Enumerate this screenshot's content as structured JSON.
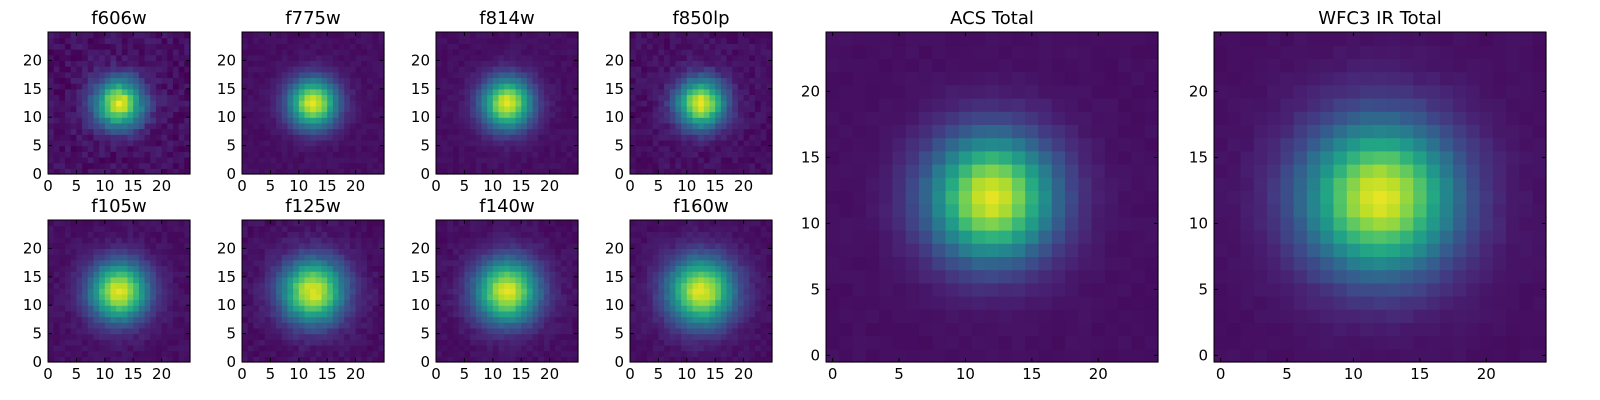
{
  "chart_data": [
    {
      "type": "heatmap",
      "title": "f606w",
      "xticks": [
        0,
        5,
        10,
        15,
        20
      ],
      "yticks": [
        0,
        5,
        10,
        15,
        20
      ],
      "xlim": [
        0,
        25
      ],
      "ylim": [
        0,
        25
      ],
      "grid_size": 25,
      "center": [
        12,
        12
      ],
      "sigma": 3.0,
      "noise": 0.1,
      "colormap": "viridis"
    },
    {
      "type": "heatmap",
      "title": "f775w",
      "xticks": [
        0,
        5,
        10,
        15,
        20
      ],
      "yticks": [
        0,
        5,
        10,
        15,
        20
      ],
      "xlim": [
        0,
        25
      ],
      "ylim": [
        0,
        25
      ],
      "grid_size": 25,
      "center": [
        12,
        12
      ],
      "sigma": 3.0,
      "noise": 0.04,
      "colormap": "viridis"
    },
    {
      "type": "heatmap",
      "title": "f814w",
      "xticks": [
        0,
        5,
        10,
        15,
        20
      ],
      "yticks": [
        0,
        5,
        10,
        15,
        20
      ],
      "xlim": [
        0,
        25
      ],
      "ylim": [
        0,
        25
      ],
      "grid_size": 25,
      "center": [
        12,
        12
      ],
      "sigma": 3.1,
      "noise": 0.04,
      "colormap": "viridis"
    },
    {
      "type": "heatmap",
      "title": "f850lp",
      "xticks": [
        0,
        5,
        10,
        15,
        20
      ],
      "yticks": [
        0,
        5,
        10,
        15,
        20
      ],
      "xlim": [
        0,
        25
      ],
      "ylim": [
        0,
        25
      ],
      "grid_size": 25,
      "center": [
        12,
        12
      ],
      "sigma": 3.0,
      "noise": 0.07,
      "colormap": "viridis"
    },
    {
      "type": "heatmap",
      "title": "f105w",
      "xticks": [
        0,
        5,
        10,
        15,
        20
      ],
      "yticks": [
        0,
        5,
        10,
        15,
        20
      ],
      "xlim": [
        0,
        25
      ],
      "ylim": [
        0,
        25
      ],
      "grid_size": 25,
      "center": [
        12,
        12
      ],
      "sigma": 3.6,
      "noise": 0.05,
      "colormap": "viridis"
    },
    {
      "type": "heatmap",
      "title": "f125w",
      "xticks": [
        0,
        5,
        10,
        15,
        20
      ],
      "yticks": [
        0,
        5,
        10,
        15,
        20
      ],
      "xlim": [
        0,
        25
      ],
      "ylim": [
        0,
        25
      ],
      "grid_size": 25,
      "center": [
        12,
        12
      ],
      "sigma": 3.9,
      "noise": 0.06,
      "colormap": "viridis"
    },
    {
      "type": "heatmap",
      "title": "f140w",
      "xticks": [
        0,
        5,
        10,
        15,
        20
      ],
      "yticks": [
        0,
        5,
        10,
        15,
        20
      ],
      "xlim": [
        0,
        25
      ],
      "ylim": [
        0,
        25
      ],
      "grid_size": 25,
      "center": [
        12,
        12
      ],
      "sigma": 3.9,
      "noise": 0.05,
      "colormap": "viridis"
    },
    {
      "type": "heatmap",
      "title": "f160w",
      "xticks": [
        0,
        5,
        10,
        15,
        20
      ],
      "yticks": [
        0,
        5,
        10,
        15,
        20
      ],
      "xlim": [
        0,
        25
      ],
      "ylim": [
        0,
        25
      ],
      "grid_size": 25,
      "center": [
        12,
        12
      ],
      "sigma": 4.1,
      "noise": 0.05,
      "colormap": "viridis"
    },
    {
      "type": "heatmap",
      "title": "ACS Total",
      "xticks": [
        0,
        5,
        10,
        15,
        20
      ],
      "yticks": [
        0,
        5,
        10,
        15,
        20
      ],
      "xlim": [
        -0.5,
        24.5
      ],
      "ylim": [
        -0.5,
        24.5
      ],
      "grid_size": 25,
      "center": [
        12,
        12
      ],
      "sigma": 3.3,
      "noise": 0.02,
      "colormap": "viridis"
    },
    {
      "type": "heatmap",
      "title": "WFC3 IR Total",
      "xticks": [
        0,
        5,
        10,
        15,
        20
      ],
      "yticks": [
        0,
        5,
        10,
        15,
        20
      ],
      "xlim": [
        -0.5,
        24.5
      ],
      "ylim": [
        -0.5,
        24.5
      ],
      "grid_size": 25,
      "center": [
        12,
        12
      ],
      "sigma": 4.0,
      "noise": 0.02,
      "colormap": "viridis"
    }
  ]
}
